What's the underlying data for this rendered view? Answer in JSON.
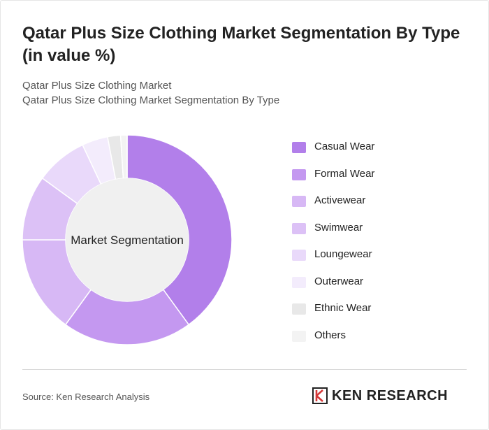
{
  "title": "Qatar Plus Size Clothing Market Segmentation By Type (in value %)",
  "subtitle_1": "Qatar Plus Size Clothing Market",
  "subtitle_2": "Qatar Plus Size Clothing Market Segmentation By Type",
  "chart_data": {
    "type": "pie",
    "variant": "donut",
    "center_label": "Market Segmentation",
    "categories": [
      "Casual Wear",
      "Formal Wear",
      "Activewear",
      "Swimwear",
      "Loungewear",
      "Outerwear",
      "Ethnic Wear",
      "Others"
    ],
    "values": [
      40,
      20,
      15,
      10,
      8,
      4,
      2,
      1
    ],
    "colors": [
      "#b27fea",
      "#c498f0",
      "#d7b8f5",
      "#dcc1f6",
      "#e9d9fa",
      "#f3ecfc",
      "#e8e8e8",
      "#f3f3f3"
    ],
    "legend_position": "right"
  },
  "footer": {
    "source": "Source: Ken Research Analysis",
    "brand": "KEN RESEARCH"
  }
}
